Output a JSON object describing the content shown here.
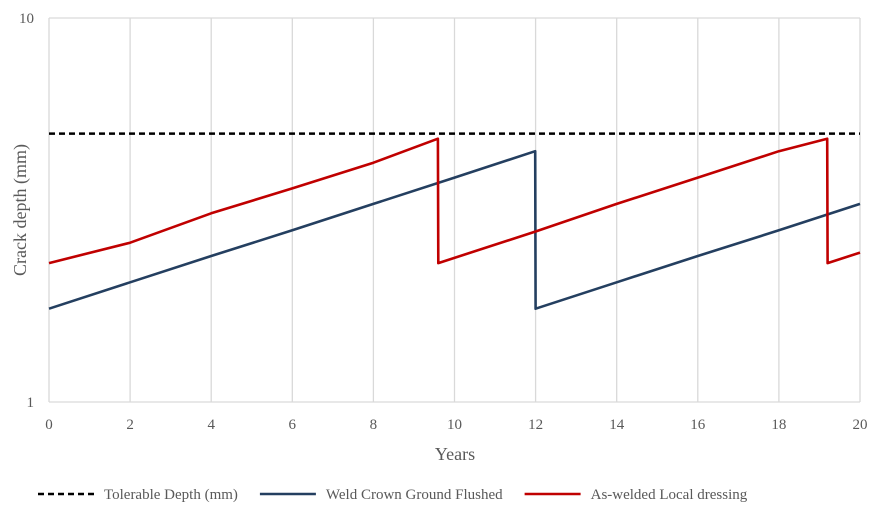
{
  "chart_data": {
    "type": "line",
    "title": "",
    "xlabel": "Years",
    "ylabel": "Crack depth (mm)",
    "xlim": [
      0,
      20
    ],
    "ylim": [
      1,
      10
    ],
    "y_scale": "log",
    "x_ticks": [
      0,
      2,
      4,
      6,
      8,
      10,
      12,
      14,
      16,
      18,
      20
    ],
    "x_tick_labels": [
      "0",
      "2",
      "4",
      "6",
      "8",
      "10",
      "12",
      "14",
      "16",
      "18",
      "20"
    ],
    "y_ticks": [
      1,
      10
    ],
    "y_tick_labels": [
      "1",
      "10"
    ],
    "grid": "vertical",
    "legend_position": "bottom",
    "series": [
      {
        "name": "Tolerable Depth (mm)",
        "color": "#000000",
        "style": "dashed",
        "x": [
          0,
          20
        ],
        "y": [
          5.0,
          5.0
        ]
      },
      {
        "name": "Weld Crown Ground Flushed",
        "color": "#243F60",
        "style": "solid",
        "x": [
          0,
          2,
          4,
          6,
          8,
          10,
          11.99,
          12,
          14,
          16,
          18,
          20
        ],
        "y": [
          1.75,
          2.05,
          2.4,
          2.8,
          3.28,
          3.84,
          4.5,
          1.75,
          2.05,
          2.4,
          2.8,
          3.28
        ]
      },
      {
        "name": "As-welded Local dressing",
        "color": "#C00000",
        "style": "solid",
        "x": [
          0,
          2,
          4,
          6,
          8,
          9.59,
          9.6,
          12,
          14,
          16,
          18,
          19.19,
          19.2,
          20
        ],
        "y": [
          2.3,
          2.6,
          3.1,
          3.6,
          4.2,
          4.85,
          2.3,
          2.78,
          3.28,
          3.84,
          4.5,
          4.85,
          2.3,
          2.45
        ]
      }
    ]
  }
}
